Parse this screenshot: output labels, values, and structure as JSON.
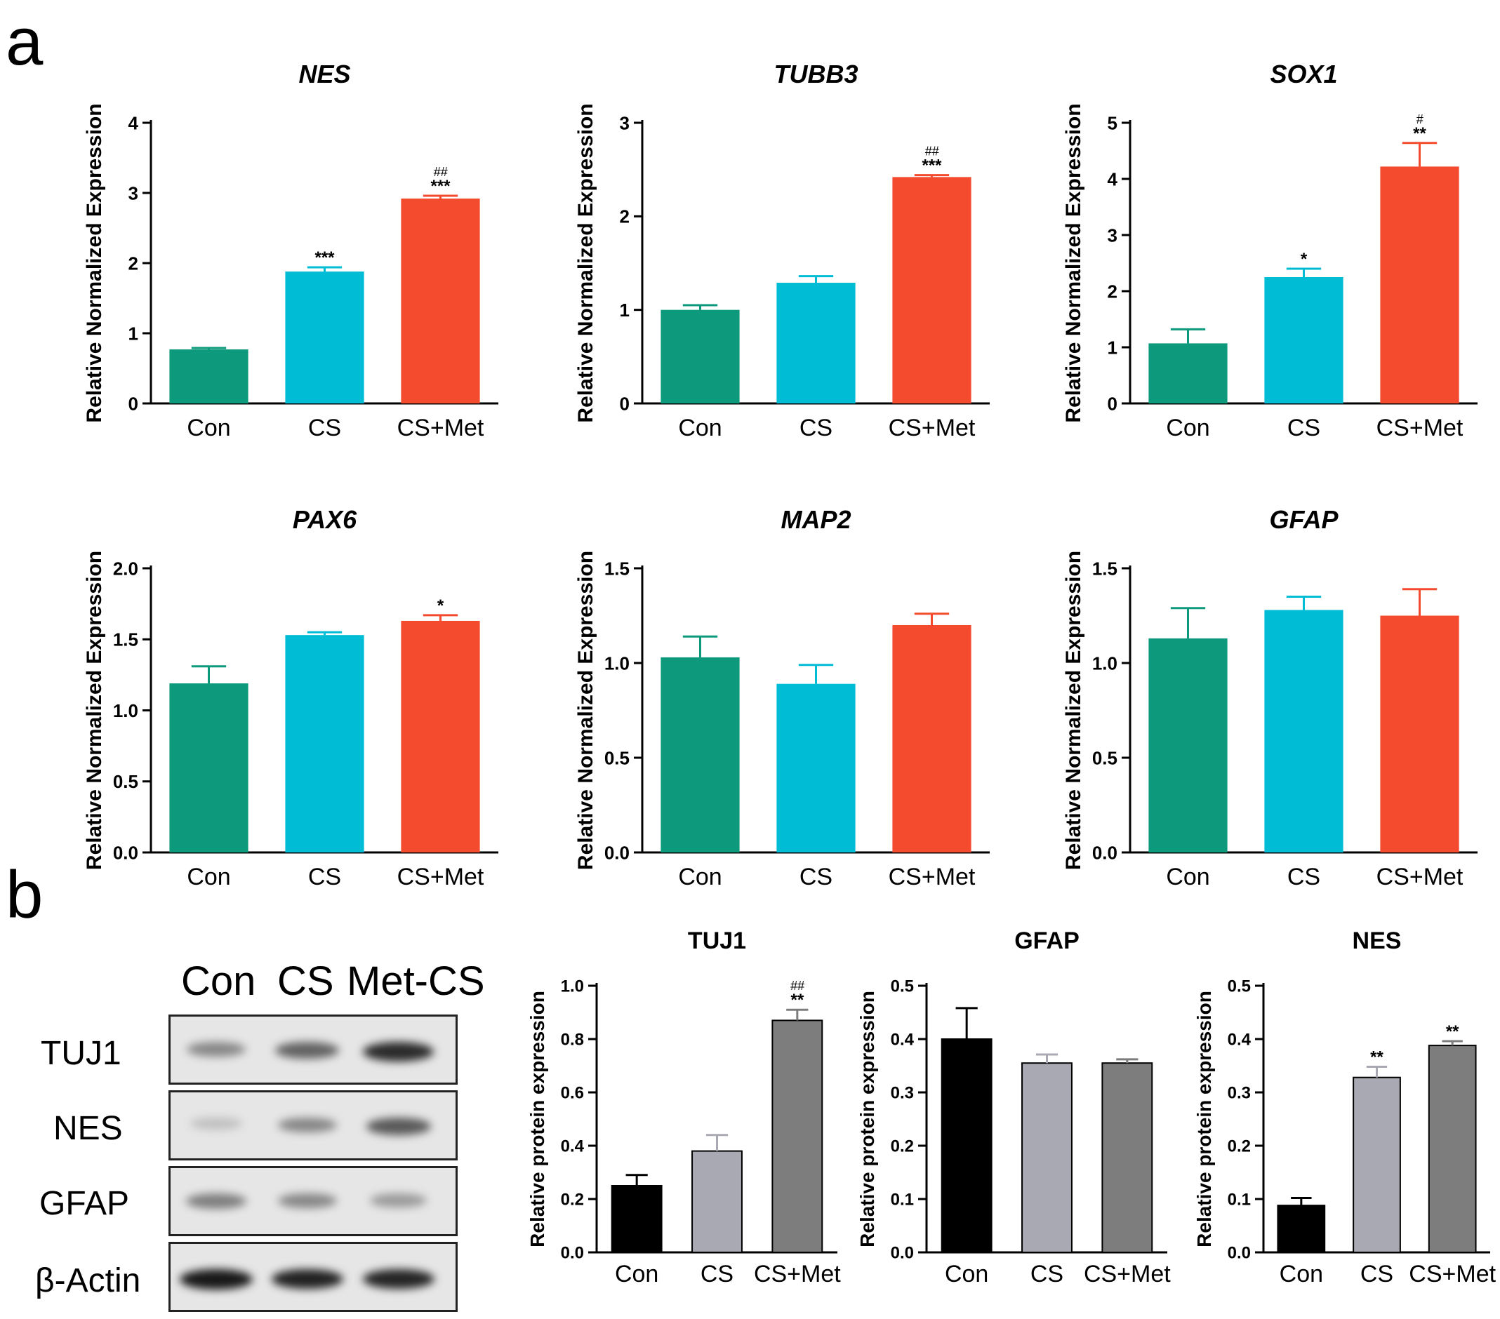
{
  "panels": {
    "a": "a",
    "b": "b"
  },
  "colors": {
    "con": "#0d9a7c",
    "cs": "#00bcd4",
    "met": "#f44a2e",
    "pcon": "#000000",
    "pcs": "#a9a9b3",
    "pmet": "#7d7d7d"
  },
  "chart_data": [
    {
      "type": "bar",
      "title": "NES",
      "ylabel": "Relative Normalized Expression",
      "categories": [
        "Con",
        "CS",
        "CS+Met"
      ],
      "values": [
        0.77,
        1.88,
        2.92
      ],
      "errors": [
        0.02,
        0.06,
        0.04
      ],
      "annotations": [
        "",
        "***",
        "***"
      ],
      "annotations2": [
        "",
        "",
        "##"
      ],
      "ylim": [
        0,
        4
      ],
      "ticks": [
        "0",
        "1",
        "2",
        "3",
        "4"
      ],
      "colors": [
        "#0d9a7c",
        "#00bcd4",
        "#f44a2e"
      ]
    },
    {
      "type": "bar",
      "title": "TUBB3",
      "ylabel": "Relative Normalized Expression",
      "categories": [
        "Con",
        "CS",
        "CS+Met"
      ],
      "values": [
        1.0,
        1.29,
        2.42
      ],
      "errors": [
        0.05,
        0.07,
        0.02
      ],
      "annotations": [
        "",
        "",
        "***"
      ],
      "annotations2": [
        "",
        "",
        "##"
      ],
      "ylim": [
        0,
        3
      ],
      "ticks": [
        "0",
        "1",
        "2",
        "3"
      ],
      "colors": [
        "#0d9a7c",
        "#00bcd4",
        "#f44a2e"
      ]
    },
    {
      "type": "bar",
      "title": "SOX1",
      "ylabel": "Relative Normalized Expression",
      "categories": [
        "Con",
        "CS",
        "CS+Met"
      ],
      "values": [
        1.07,
        2.25,
        4.22
      ],
      "errors": [
        0.25,
        0.15,
        0.42
      ],
      "annotations": [
        "",
        "*",
        "**"
      ],
      "annotations2": [
        "",
        "",
        "#"
      ],
      "ylim": [
        0,
        5
      ],
      "ticks": [
        "0",
        "1",
        "2",
        "3",
        "4",
        "5"
      ],
      "colors": [
        "#0d9a7c",
        "#00bcd4",
        "#f44a2e"
      ]
    },
    {
      "type": "bar",
      "title": "PAX6",
      "ylabel": "Relative Normalized Expression",
      "categories": [
        "Con",
        "CS",
        "CS+Met"
      ],
      "values": [
        1.19,
        1.53,
        1.63
      ],
      "errors": [
        0.12,
        0.02,
        0.04
      ],
      "annotations": [
        "",
        "",
        "*"
      ],
      "annotations2": [
        "",
        "",
        ""
      ],
      "ylim": [
        0,
        2.0
      ],
      "ticks": [
        "0.0",
        "0.5",
        "1.0",
        "1.5",
        "2.0"
      ],
      "colors": [
        "#0d9a7c",
        "#00bcd4",
        "#f44a2e"
      ]
    },
    {
      "type": "bar",
      "title": "MAP2",
      "ylabel": "Relative Normalized Expression",
      "categories": [
        "Con",
        "CS",
        "CS+Met"
      ],
      "values": [
        1.03,
        0.89,
        1.2
      ],
      "errors": [
        0.11,
        0.1,
        0.06
      ],
      "annotations": [
        "",
        "",
        ""
      ],
      "annotations2": [
        "",
        "",
        ""
      ],
      "ylim": [
        0,
        1.5
      ],
      "ticks": [
        "0.0",
        "0.5",
        "1.0",
        "1.5"
      ],
      "colors": [
        "#0d9a7c",
        "#00bcd4",
        "#f44a2e"
      ]
    },
    {
      "type": "bar",
      "title": "GFAP",
      "ylabel": "Relative Normalized Expression",
      "categories": [
        "Con",
        "CS",
        "CS+Met"
      ],
      "values": [
        1.13,
        1.28,
        1.25
      ],
      "errors": [
        0.16,
        0.07,
        0.14
      ],
      "annotations": [
        "",
        "",
        ""
      ],
      "annotations2": [
        "",
        "",
        ""
      ],
      "ylim": [
        0,
        1.5
      ],
      "ticks": [
        "0.0",
        "0.5",
        "1.0",
        "1.5"
      ],
      "colors": [
        "#0d9a7c",
        "#00bcd4",
        "#f44a2e"
      ]
    },
    {
      "type": "bar",
      "title": "TUJ1",
      "ylabel": "Relative protein expression",
      "categories": [
        "Con",
        "CS",
        "CS+Met"
      ],
      "values": [
        0.25,
        0.38,
        0.87
      ],
      "errors": [
        0.04,
        0.06,
        0.04
      ],
      "annotations": [
        "",
        "",
        "**"
      ],
      "annotations2": [
        "",
        "",
        "##"
      ],
      "ylim": [
        0,
        1.0
      ],
      "ticks": [
        "0.0",
        "0.2",
        "0.4",
        "0.6",
        "0.8",
        "1.0"
      ],
      "colors": [
        "#000000",
        "#a9a9b3",
        "#7d7d7d"
      ]
    },
    {
      "type": "bar",
      "title": "GFAP",
      "ylabel": "Relative protein expression",
      "categories": [
        "Con",
        "CS",
        "CS+Met"
      ],
      "values": [
        0.4,
        0.355,
        0.355
      ],
      "errors": [
        0.058,
        0.016,
        0.007
      ],
      "annotations": [
        "",
        "",
        ""
      ],
      "annotations2": [
        "",
        "",
        ""
      ],
      "ylim": [
        0,
        0.5
      ],
      "ticks": [
        "0.0",
        "0.1",
        "0.2",
        "0.3",
        "0.4",
        "0.5"
      ],
      "colors": [
        "#000000",
        "#a9a9b3",
        "#7d7d7d"
      ]
    },
    {
      "type": "bar",
      "title": "NES",
      "ylabel": "Relative protein expression",
      "categories": [
        "Con",
        "CS",
        "CS+Met"
      ],
      "values": [
        0.088,
        0.328,
        0.388
      ],
      "errors": [
        0.014,
        0.02,
        0.008
      ],
      "annotations": [
        "",
        "**",
        "**"
      ],
      "annotations2": [
        "",
        "",
        ""
      ],
      "ylim": [
        0,
        0.5
      ],
      "ticks": [
        "0.0",
        "0.1",
        "0.2",
        "0.3",
        "0.4",
        "0.5"
      ],
      "colors": [
        "#000000",
        "#a9a9b3",
        "#7d7d7d"
      ]
    }
  ],
  "western_blot": {
    "lanes": [
      "Con",
      "CS",
      "Met-CS"
    ],
    "rows": [
      {
        "label": "TUJ1",
        "bands": [
          0.35,
          0.55,
          0.85
        ]
      },
      {
        "label": "NES",
        "bands": [
          0.05,
          0.35,
          0.6
        ]
      },
      {
        "label": "GFAP",
        "bands": [
          0.4,
          0.35,
          0.25
        ]
      },
      {
        "label": "β-Actin",
        "bands": [
          0.95,
          0.9,
          0.88
        ]
      }
    ]
  }
}
